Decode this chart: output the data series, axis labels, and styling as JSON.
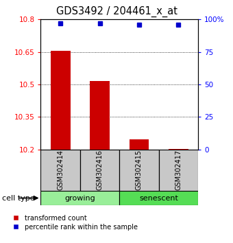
{
  "title": "GDS3492 / 204461_x_at",
  "samples": [
    "GSM302414",
    "GSM302416",
    "GSM302415",
    "GSM302417"
  ],
  "groups": [
    "growing",
    "growing",
    "senescent",
    "senescent"
  ],
  "bar_values": [
    10.656,
    10.517,
    10.248,
    10.202
  ],
  "percentile_values": [
    97,
    97,
    96,
    96
  ],
  "ymin": 10.2,
  "ymax": 10.8,
  "yticks": [
    10.2,
    10.35,
    10.5,
    10.65,
    10.8
  ],
  "ytick_labels": [
    "10.2",
    "10.35",
    "10.5",
    "10.65",
    "10.8"
  ],
  "y2ticks": [
    0,
    25,
    50,
    75,
    100
  ],
  "y2tick_labels": [
    "0",
    "25",
    "50",
    "75",
    "100%"
  ],
  "bar_color": "#CC0000",
  "dot_color": "#0000CC",
  "bar_width": 0.5,
  "growing_color": "#99EE99",
  "senescent_color": "#55DD55",
  "gray_color": "#C8C8C8",
  "cell_type_label": "cell type",
  "legend_red_label": "transformed count",
  "legend_blue_label": "percentile rank within the sample"
}
